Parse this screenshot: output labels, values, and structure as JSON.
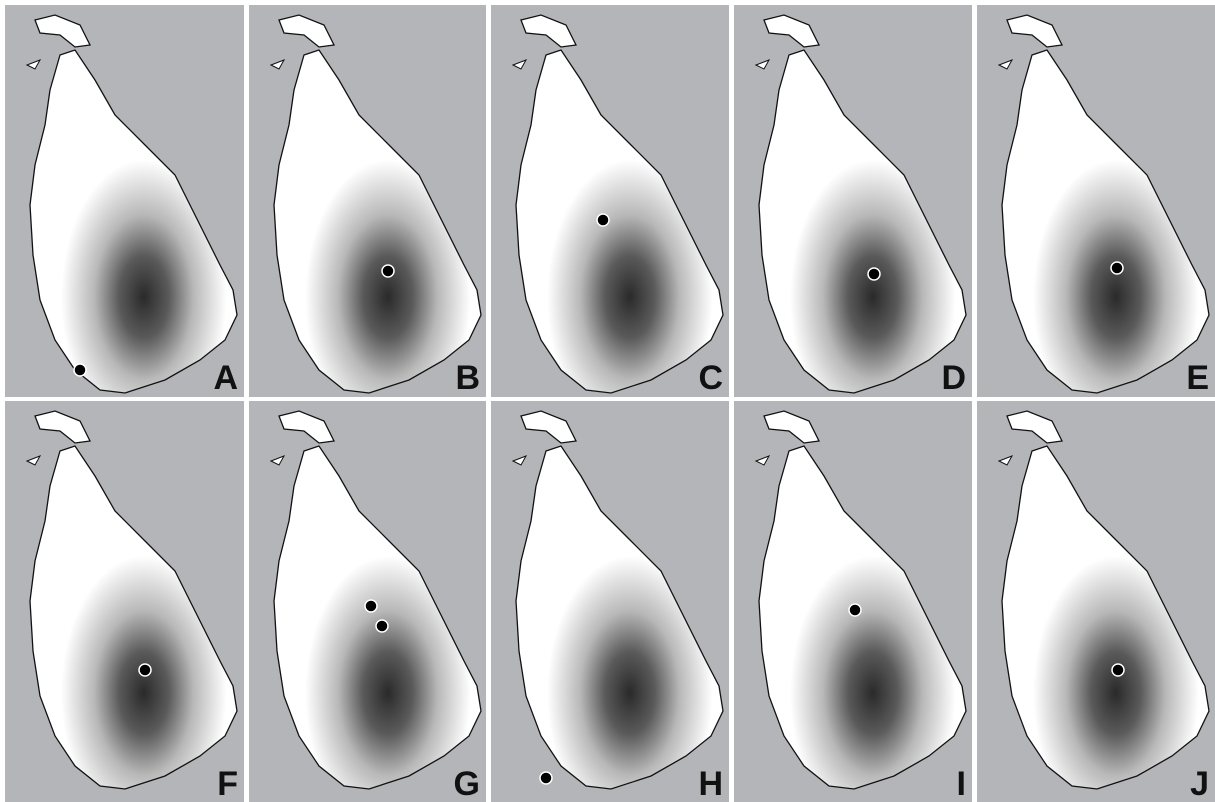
{
  "panels": [
    {
      "label": "A"
    },
    {
      "label": "B"
    },
    {
      "label": "C"
    },
    {
      "label": "D"
    },
    {
      "label": "E"
    },
    {
      "label": "F"
    },
    {
      "label": "G"
    },
    {
      "label": "H"
    },
    {
      "label": "I"
    },
    {
      "label": "J"
    }
  ]
}
